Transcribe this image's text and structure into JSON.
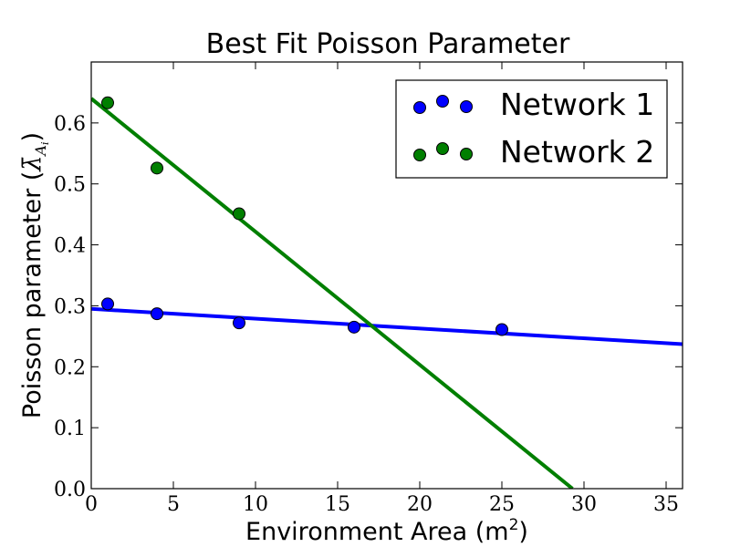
{
  "chart_data": {
    "type": "scatter",
    "title": "Best Fit Poisson Parameter",
    "xlabel_main": "Environment Area (m",
    "xlabel_sup": "2",
    "xlabel_close": ")",
    "ylabel_main": "Poisson parameter (",
    "ylabel_symbol": "λ̄",
    "ylabel_sub": "A",
    "ylabel_subsub": "i",
    "ylabel_close": ")",
    "xlim": [
      0,
      36
    ],
    "ylim": [
      0.0,
      0.7
    ],
    "xticks": [
      0,
      5,
      10,
      15,
      20,
      25,
      30,
      35
    ],
    "xtick_labels": [
      "0",
      "5",
      "10",
      "15",
      "20",
      "25",
      "30",
      "35"
    ],
    "yticks": [
      0.0,
      0.1,
      0.2,
      0.3,
      0.4,
      0.5,
      0.6
    ],
    "ytick_labels": [
      "0.0",
      "0.1",
      "0.2",
      "0.3",
      "0.4",
      "0.5",
      "0.6"
    ],
    "grid": false,
    "legend_position": "top-right",
    "series": [
      {
        "name": "Network 1",
        "color": "#0000ff",
        "points": [
          {
            "x": 1,
            "y": 0.303
          },
          {
            "x": 4,
            "y": 0.287
          },
          {
            "x": 9,
            "y": 0.272
          },
          {
            "x": 16,
            "y": 0.265
          },
          {
            "x": 25,
            "y": 0.261
          }
        ],
        "fit_line": [
          {
            "x": 0,
            "y": 0.295
          },
          {
            "x": 36,
            "y": 0.237
          }
        ]
      },
      {
        "name": "Network 2",
        "color": "#007f00",
        "points": [
          {
            "x": 1,
            "y": 0.633
          },
          {
            "x": 4,
            "y": 0.526
          },
          {
            "x": 9,
            "y": 0.451
          }
        ],
        "fit_line": [
          {
            "x": 0,
            "y": 0.64
          },
          {
            "x": 29.3,
            "y": 0.0
          }
        ]
      }
    ]
  }
}
